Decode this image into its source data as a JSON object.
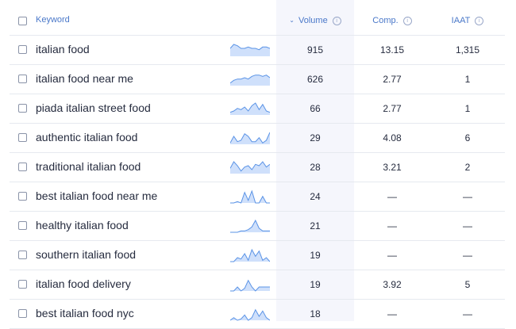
{
  "header": {
    "keyword": "Keyword",
    "volume": "Volume",
    "comp": "Comp.",
    "iaat": "IAAT",
    "info_icon": "info-icon",
    "sort_icon": "chevron-down-icon"
  },
  "colors": {
    "accent": "#4a78c9",
    "spark_fill": "#cfe0fb",
    "spark_line": "#5a93e6",
    "volume_bg": "#f5f6fc"
  },
  "rows": [
    {
      "keyword": "italian food",
      "volume": "915",
      "comp": "13.15",
      "iaat": "1,315",
      "trend": [
        6,
        9,
        8,
        6,
        6,
        7,
        6,
        6,
        5,
        7,
        7,
        6
      ]
    },
    {
      "keyword": "italian food near me",
      "volume": "626",
      "comp": "2.77",
      "iaat": "1",
      "trend": [
        2,
        4,
        5,
        5,
        6,
        5,
        7,
        8,
        8,
        7,
        8,
        6
      ]
    },
    {
      "keyword": "piada italian street food",
      "volume": "66",
      "comp": "2.77",
      "iaat": "1",
      "trend": [
        2,
        3,
        5,
        4,
        6,
        3,
        7,
        9,
        4,
        8,
        3,
        2
      ]
    },
    {
      "keyword": "authentic italian food",
      "volume": "29",
      "comp": "4.08",
      "iaat": "6",
      "trend": [
        1,
        6,
        2,
        3,
        8,
        6,
        2,
        2,
        5,
        1,
        3,
        9
      ]
    },
    {
      "keyword": "traditional italian food",
      "volume": "28",
      "comp": "3.21",
      "iaat": "2",
      "trend": [
        4,
        9,
        6,
        2,
        5,
        6,
        3,
        7,
        6,
        9,
        5,
        7
      ]
    },
    {
      "keyword": "best italian food near me",
      "volume": "24",
      "comp": "—",
      "iaat": "—",
      "trend": [
        0,
        0,
        1,
        0,
        8,
        2,
        9,
        0,
        0,
        5,
        0,
        0
      ]
    },
    {
      "keyword": "healthy italian food",
      "volume": "21",
      "comp": "—",
      "iaat": "—",
      "trend": [
        0,
        0,
        0,
        1,
        1,
        2,
        4,
        9,
        3,
        1,
        1,
        1
      ]
    },
    {
      "keyword": "southern italian food",
      "volume": "19",
      "comp": "—",
      "iaat": "—",
      "trend": [
        0,
        0,
        3,
        2,
        6,
        1,
        9,
        4,
        8,
        1,
        3,
        0
      ]
    },
    {
      "keyword": "italian food delivery",
      "volume": "19",
      "comp": "3.92",
      "iaat": "5",
      "trend": [
        0,
        0,
        3,
        0,
        2,
        8,
        3,
        0,
        3,
        3,
        3,
        3
      ]
    },
    {
      "keyword": "best italian food nyc",
      "volume": "18",
      "comp": "—",
      "iaat": "—",
      "trend": [
        0,
        2,
        0,
        1,
        4,
        0,
        2,
        8,
        3,
        7,
        2,
        0
      ]
    }
  ]
}
